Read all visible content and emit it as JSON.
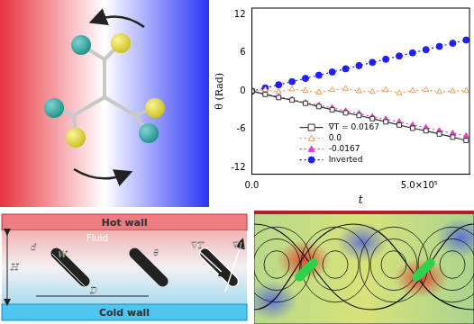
{
  "chart_data": {
    "type": "line",
    "x_label": "t",
    "y_label": "θ (Rad)",
    "x": [
      0,
      40000,
      80000,
      120000,
      160000,
      200000,
      240000,
      280000,
      320000,
      360000,
      400000,
      440000,
      480000,
      520000,
      560000,
      600000,
      640000
    ],
    "xlim": [
      0,
      650000
    ],
    "xticks": [
      {
        "value": 0,
        "label": "0.0"
      },
      {
        "value": 500000,
        "label": "5.0×10⁵"
      }
    ],
    "ylim": [
      -13,
      13
    ],
    "yticks": [
      -12,
      -6,
      0,
      6,
      12
    ],
    "grid": false,
    "legend": "lower left",
    "series": [
      {
        "name": "∇T = 0.0167",
        "color": "#333333",
        "marker": "square_open",
        "line_style": "solid",
        "values": [
          0,
          -0.5,
          -1.0,
          -1.4,
          -1.9,
          -2.4,
          -2.9,
          -3.4,
          -3.8,
          -4.3,
          -4.8,
          -5.3,
          -5.8,
          -6.2,
          -6.7,
          -7.2,
          -7.7
        ]
      },
      {
        "name": "0.0",
        "color": "#f29a55",
        "marker": "triangle_open",
        "line_style": "dotted",
        "values": [
          0,
          0.2,
          -0.1,
          0.3,
          0.1,
          -0.2,
          0.2,
          0.4,
          0.0,
          -0.1,
          0.2,
          -0.3,
          0.1,
          0.2,
          -0.1,
          0.0,
          0.1
        ]
      },
      {
        "name": "-0.0167",
        "color": "#e23fc4",
        "marker": "triangle",
        "line_style": "dotted",
        "values": [
          0,
          -0.4,
          -0.9,
          -1.3,
          -1.8,
          -2.2,
          -2.6,
          -3.1,
          -3.5,
          -4.0,
          -4.4,
          -4.8,
          -5.3,
          -5.7,
          -6.2,
          -6.6,
          -7.0
        ]
      },
      {
        "name": "Inverted",
        "color": "#1f1fff",
        "marker": "circle",
        "line_style": "dotted",
        "values": [
          0,
          0.5,
          1.0,
          1.5,
          2.0,
          2.5,
          3.0,
          3.5,
          4.0,
          4.5,
          5.0,
          5.5,
          6.0,
          6.5,
          7.0,
          7.5,
          8.0
        ]
      }
    ]
  },
  "channel_diagram": {
    "hot_wall": "Hot wall",
    "fluid": "Fluid",
    "cold_wall": "Cold wall",
    "symbols": [
      "H",
      "d",
      "W",
      "θ",
      "D",
      "∇T",
      "∇L"
    ]
  }
}
